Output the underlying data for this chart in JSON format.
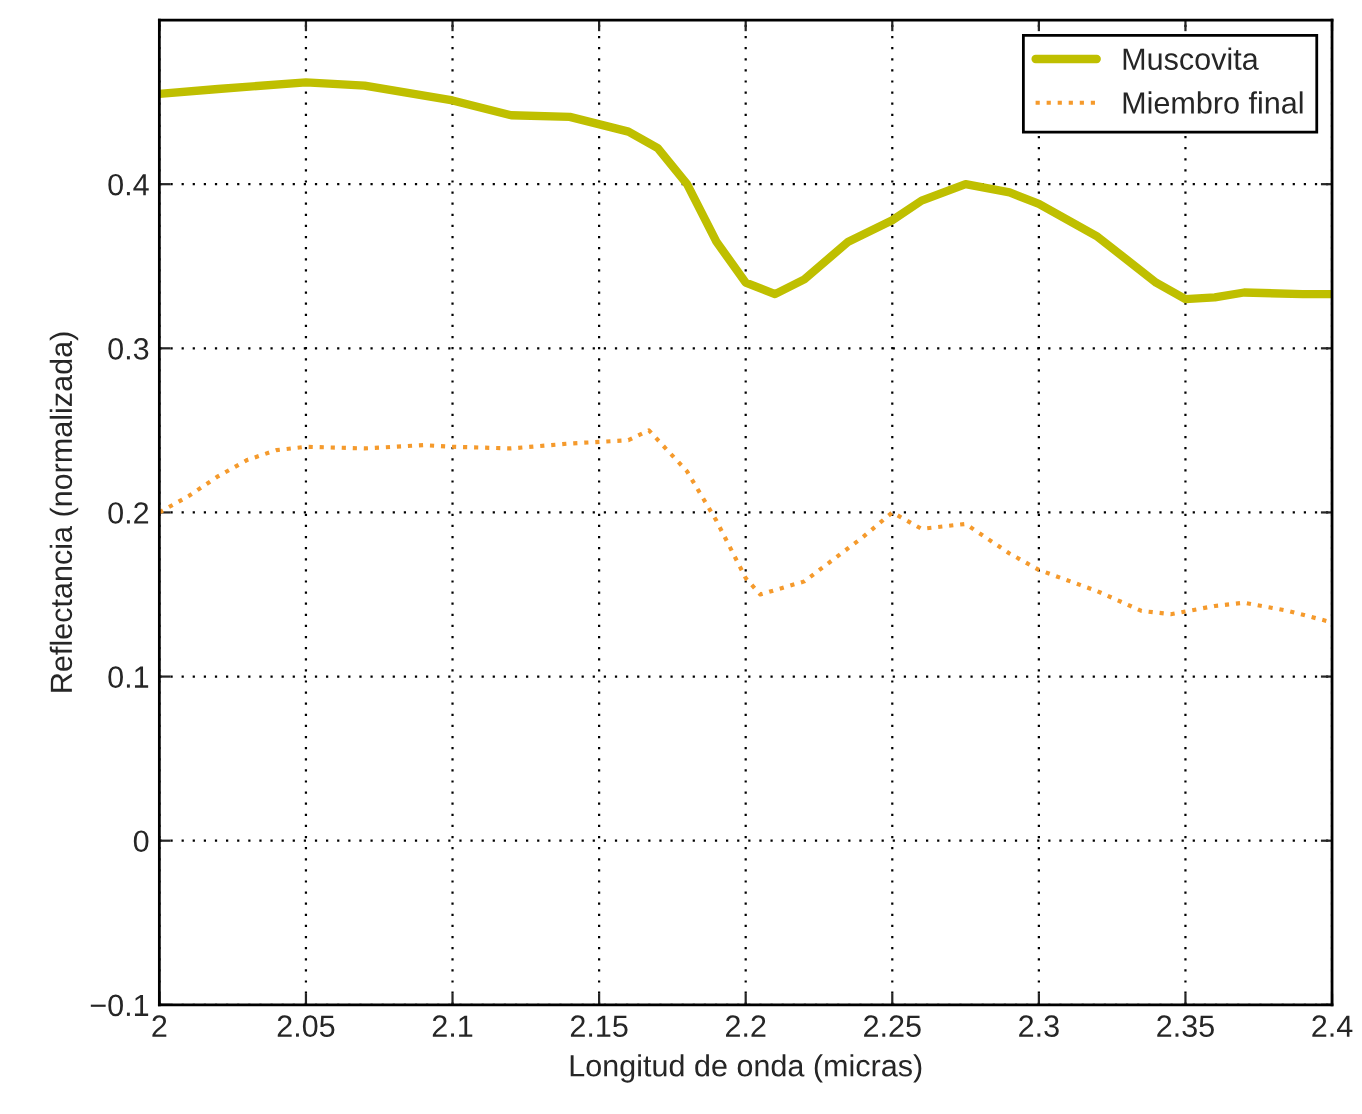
{
  "chart_data": {
    "type": "line",
    "xlabel": "Longitud de onda (micras)",
    "ylabel": "Reflectancia (normalizada)",
    "xlim": [
      2,
      2.4
    ],
    "xticks": [
      2,
      2.05,
      2.1,
      2.15,
      2.2,
      2.25,
      2.3,
      2.35,
      2.4
    ],
    "ylim": [
      -0.1,
      0.5
    ],
    "yticks": [
      -0.1,
      0,
      0.1,
      0.2,
      0.3,
      0.4
    ],
    "grid": true,
    "legend": "top right",
    "series": [
      {
        "name": "Muscovita",
        "color": "#bfbf00",
        "line_style": "solid",
        "x": [
          2.0,
          2.02,
          2.05,
          2.07,
          2.1,
          2.12,
          2.14,
          2.16,
          2.17,
          2.18,
          2.19,
          2.2,
          2.21,
          2.22,
          2.235,
          2.25,
          2.26,
          2.275,
          2.29,
          2.3,
          2.32,
          2.34,
          2.35,
          2.36,
          2.37,
          2.39,
          2.4
        ],
        "values": [
          0.455,
          0.458,
          0.462,
          0.46,
          0.451,
          0.442,
          0.441,
          0.432,
          0.422,
          0.4,
          0.365,
          0.34,
          0.333,
          0.342,
          0.365,
          0.378,
          0.39,
          0.4,
          0.395,
          0.388,
          0.368,
          0.34,
          0.33,
          0.331,
          0.334,
          0.333,
          0.333
        ]
      },
      {
        "name": "Miembro final",
        "color": "#f59a2c",
        "line_style": "dotted",
        "x": [
          2.0,
          2.01,
          2.02,
          2.03,
          2.04,
          2.05,
          2.07,
          2.09,
          2.1,
          2.12,
          2.14,
          2.16,
          2.167,
          2.18,
          2.19,
          2.2,
          2.205,
          2.22,
          2.24,
          2.25,
          2.26,
          2.275,
          2.29,
          2.3,
          2.32,
          2.335,
          2.345,
          2.36,
          2.37,
          2.385,
          2.4
        ],
        "values": [
          0.2,
          0.21,
          0.222,
          0.232,
          0.238,
          0.24,
          0.239,
          0.241,
          0.24,
          0.239,
          0.242,
          0.244,
          0.25,
          0.225,
          0.195,
          0.16,
          0.15,
          0.158,
          0.185,
          0.2,
          0.19,
          0.193,
          0.175,
          0.165,
          0.152,
          0.14,
          0.138,
          0.143,
          0.145,
          0.14,
          0.133
        ]
      }
    ]
  }
}
